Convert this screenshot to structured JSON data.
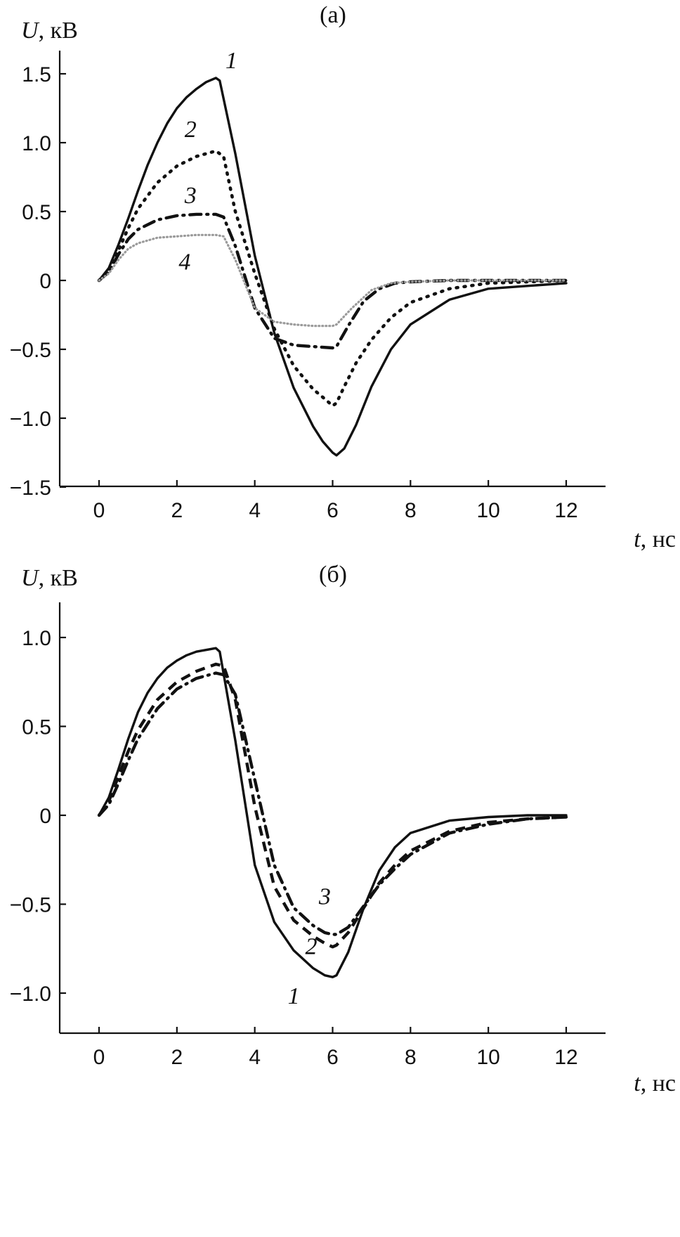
{
  "chart_data": [
    {
      "type": "line",
      "title": "(a)",
      "xlabel": "t, нс",
      "xlabel_var": "t",
      "xlabel_unit": ", нс",
      "ylabel": "U, кВ",
      "ylabel_var": "U",
      "ylabel_unit": ", кВ",
      "xlim": [
        -1,
        13
      ],
      "ylim": [
        -1.5,
        1.6
      ],
      "xticks": [
        0,
        2,
        4,
        6,
        8,
        10,
        12
      ],
      "xtick_labels": [
        "0",
        "2",
        "4",
        "6",
        "8",
        "10",
        "12"
      ],
      "yticks": [
        -1.5,
        -1.0,
        -0.5,
        0,
        0.5,
        1.0,
        1.5
      ],
      "ytick_labels": [
        "−1.5",
        "−1.0",
        "−0.5",
        "0",
        "0.5",
        "1.0",
        "1.5"
      ],
      "series": [
        {
          "name": "1",
          "style": "solid",
          "x": [
            0,
            0.25,
            0.5,
            0.75,
            1.0,
            1.25,
            1.5,
            1.75,
            2.0,
            2.25,
            2.5,
            2.75,
            3.0,
            3.1,
            3.5,
            4.0,
            4.5,
            5.0,
            5.5,
            5.75,
            6.0,
            6.1,
            6.3,
            6.6,
            7.0,
            7.5,
            8.0,
            9.0,
            10.0,
            11.0,
            12.0
          ],
          "y": [
            0,
            0.09,
            0.26,
            0.45,
            0.65,
            0.84,
            1.0,
            1.14,
            1.25,
            1.33,
            1.39,
            1.44,
            1.47,
            1.45,
            0.92,
            0.18,
            -0.38,
            -0.78,
            -1.06,
            -1.17,
            -1.25,
            -1.27,
            -1.22,
            -1.05,
            -0.77,
            -0.5,
            -0.32,
            -0.14,
            -0.06,
            -0.04,
            -0.02
          ]
        },
        {
          "name": "2",
          "style": "dotted",
          "x": [
            0,
            0.25,
            0.5,
            0.75,
            1.0,
            1.5,
            2.0,
            2.5,
            3.0,
            3.2,
            3.5,
            4.0,
            4.5,
            5.0,
            5.5,
            5.8,
            6.0,
            6.1,
            6.3,
            6.6,
            7.0,
            7.5,
            8.0,
            9.0,
            10.0,
            11.0,
            12.0
          ],
          "y": [
            0,
            0.07,
            0.22,
            0.38,
            0.52,
            0.71,
            0.83,
            0.9,
            0.94,
            0.9,
            0.5,
            0.05,
            -0.35,
            -0.62,
            -0.79,
            -0.86,
            -0.91,
            -0.89,
            -0.77,
            -0.6,
            -0.43,
            -0.27,
            -0.16,
            -0.06,
            -0.02,
            -0.01,
            0
          ]
        },
        {
          "name": "3",
          "style": "dash-dot",
          "x": [
            0,
            0.25,
            0.5,
            0.75,
            1.0,
            1.5,
            2.0,
            2.5,
            3.0,
            3.2,
            3.5,
            4.0,
            4.5,
            5.0,
            5.5,
            6.0,
            6.1,
            6.4,
            6.8,
            7.2,
            7.6,
            8.0,
            9.0,
            10.0,
            11.0,
            12.0
          ],
          "y": [
            0,
            0.06,
            0.19,
            0.3,
            0.37,
            0.44,
            0.47,
            0.48,
            0.48,
            0.46,
            0.25,
            -0.2,
            -0.42,
            -0.47,
            -0.48,
            -0.49,
            -0.48,
            -0.33,
            -0.15,
            -0.06,
            -0.02,
            -0.01,
            0,
            0,
            0,
            0
          ]
        },
        {
          "name": "4",
          "style": "dense-dotted",
          "x": [
            0,
            0.25,
            0.5,
            0.75,
            1.0,
            1.5,
            2.0,
            2.5,
            3.0,
            3.2,
            3.5,
            4.0,
            4.5,
            5.0,
            5.5,
            6.0,
            6.1,
            6.5,
            7.0,
            7.5,
            8.0,
            9.0,
            10.0,
            11.0,
            12.0
          ],
          "y": [
            0,
            0.05,
            0.15,
            0.23,
            0.27,
            0.31,
            0.32,
            0.33,
            0.33,
            0.32,
            0.15,
            -0.2,
            -0.3,
            -0.32,
            -0.33,
            -0.33,
            -0.32,
            -0.2,
            -0.07,
            -0.02,
            -0.01,
            0,
            0,
            0,
            0
          ]
        }
      ],
      "curve_labels": [
        {
          "text": "1",
          "x": 3.4,
          "y": 1.54
        },
        {
          "text": "2",
          "x": 2.35,
          "y": 1.04
        },
        {
          "text": "3",
          "x": 2.35,
          "y": 0.56
        },
        {
          "text": "4",
          "x": 2.2,
          "y": 0.08
        }
      ]
    },
    {
      "type": "line",
      "title": "(б)",
      "xlabel": "t, нс",
      "xlabel_var": "t",
      "xlabel_unit": ", нс",
      "ylabel": "U, кВ",
      "ylabel_var": "U",
      "ylabel_unit": ", кВ",
      "xlim": [
        -1,
        13
      ],
      "ylim": [
        -1.25,
        1.2
      ],
      "xticks": [
        0,
        2,
        4,
        6,
        8,
        10,
        12
      ],
      "xtick_labels": [
        "0",
        "2",
        "4",
        "6",
        "8",
        "10",
        "12"
      ],
      "yticks": [
        -1.0,
        -0.5,
        0,
        0.5,
        1.0
      ],
      "ytick_labels": [
        "−1.0",
        "−0.5",
        "0",
        "0.5",
        "1.0"
      ],
      "series": [
        {
          "name": "1",
          "style": "solid",
          "x": [
            0,
            0.25,
            0.5,
            0.75,
            1.0,
            1.25,
            1.5,
            1.75,
            2.0,
            2.25,
            2.5,
            2.75,
            3.0,
            3.1,
            3.5,
            4.0,
            4.5,
            5.0,
            5.5,
            5.8,
            6.0,
            6.1,
            6.4,
            6.8,
            7.2,
            7.6,
            8.0,
            9.0,
            10.0,
            11.0,
            12.0
          ],
          "y": [
            0,
            0.1,
            0.26,
            0.43,
            0.58,
            0.69,
            0.77,
            0.83,
            0.87,
            0.9,
            0.92,
            0.93,
            0.94,
            0.92,
            0.42,
            -0.28,
            -0.6,
            -0.76,
            -0.86,
            -0.9,
            -0.91,
            -0.9,
            -0.77,
            -0.52,
            -0.31,
            -0.18,
            -0.1,
            -0.03,
            -0.01,
            0,
            0
          ]
        },
        {
          "name": "2",
          "style": "dashed",
          "x": [
            0,
            0.25,
            0.5,
            0.75,
            1.0,
            1.5,
            2.0,
            2.5,
            3.0,
            3.2,
            3.5,
            4.0,
            4.5,
            5.0,
            5.5,
            5.8,
            6.0,
            6.1,
            6.4,
            6.8,
            7.2,
            7.6,
            8.0,
            9.0,
            10.0,
            11.0,
            12.0
          ],
          "y": [
            0,
            0.08,
            0.22,
            0.36,
            0.48,
            0.65,
            0.75,
            0.81,
            0.85,
            0.84,
            0.65,
            0.05,
            -0.4,
            -0.59,
            -0.68,
            -0.72,
            -0.74,
            -0.73,
            -0.66,
            -0.52,
            -0.38,
            -0.28,
            -0.2,
            -0.09,
            -0.04,
            -0.02,
            -0.01
          ]
        },
        {
          "name": "3",
          "style": "dash-dot",
          "x": [
            0,
            0.25,
            0.5,
            0.75,
            1.0,
            1.5,
            2.0,
            2.5,
            3.0,
            3.2,
            3.5,
            4.0,
            4.5,
            5.0,
            5.5,
            5.8,
            6.0,
            6.1,
            6.4,
            6.8,
            7.2,
            7.6,
            8.0,
            9.0,
            10.0,
            11.0,
            12.0
          ],
          "y": [
            0,
            0.06,
            0.18,
            0.31,
            0.43,
            0.6,
            0.71,
            0.77,
            0.8,
            0.79,
            0.68,
            0.2,
            -0.28,
            -0.52,
            -0.62,
            -0.66,
            -0.67,
            -0.67,
            -0.63,
            -0.51,
            -0.39,
            -0.3,
            -0.22,
            -0.1,
            -0.05,
            -0.02,
            -0.01
          ]
        }
      ],
      "curve_labels": [
        {
          "text": "3",
          "x": 5.8,
          "y": -0.5
        },
        {
          "text": "2",
          "x": 5.45,
          "y": -0.78
        },
        {
          "text": "1",
          "x": 5.0,
          "y": -1.06
        }
      ]
    }
  ]
}
